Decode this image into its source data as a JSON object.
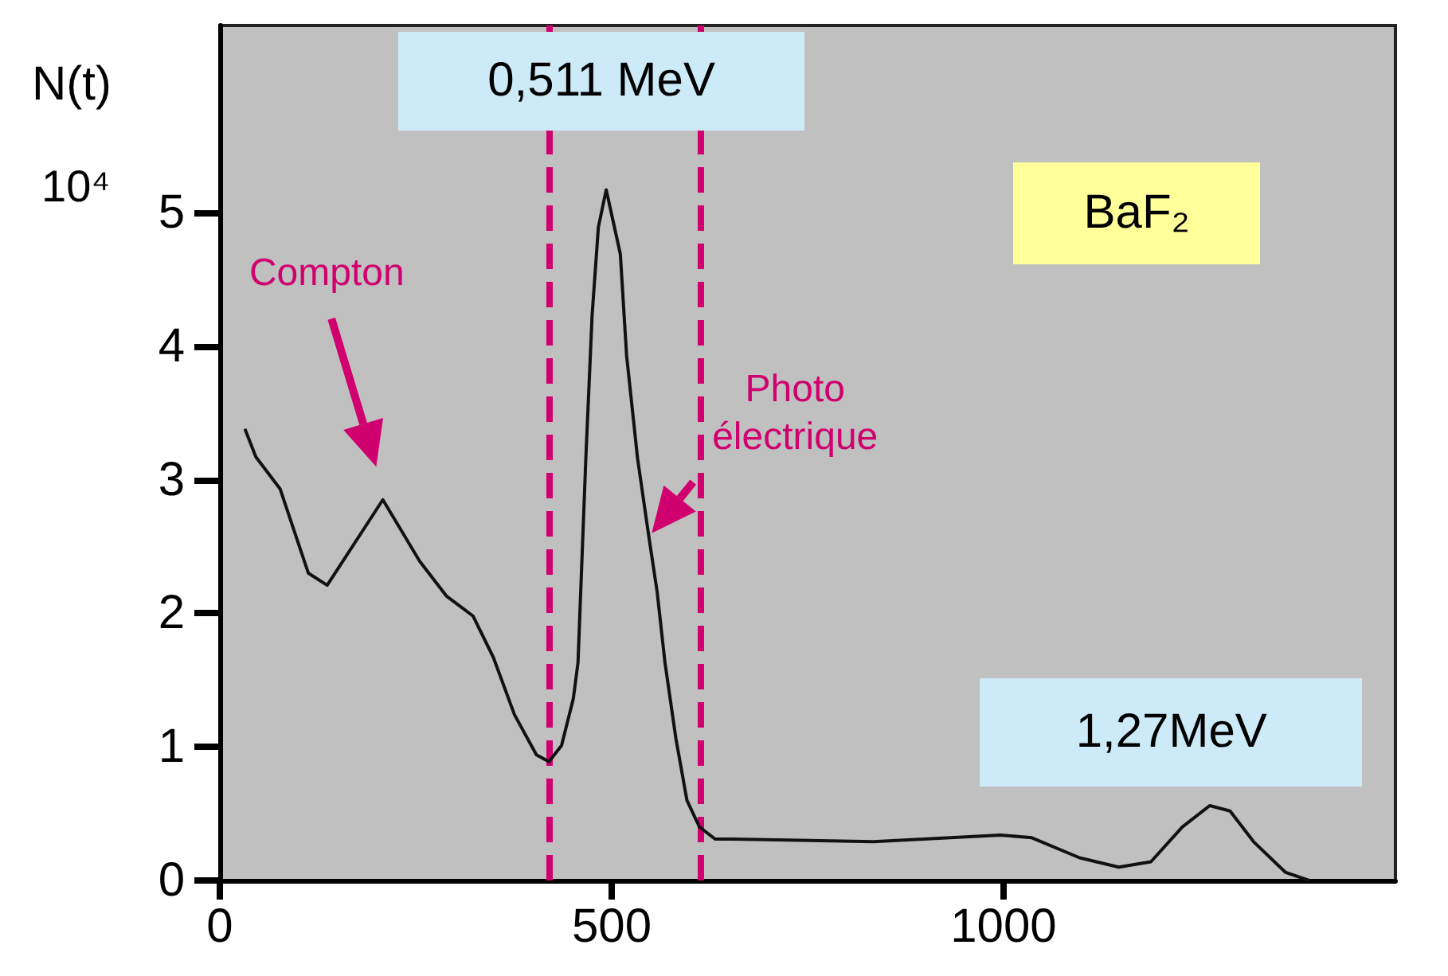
{
  "chart_data": {
    "type": "line",
    "ylabel": "N(t)\n10⁴",
    "x": [
      32,
      46,
      77,
      113,
      137,
      208,
      255,
      289,
      323,
      349,
      376,
      404,
      420,
      436,
      451,
      457,
      467,
      475,
      483,
      493,
      511,
      519,
      533,
      547,
      558,
      568,
      582,
      596,
      612,
      632,
      653,
      834,
      996,
      1036,
      1097,
      1147,
      1188,
      1228,
      1263,
      1289,
      1319,
      1360,
      1390
    ],
    "series": [
      {
        "color": "#111111",
        "values": [
          3.38,
          3.17,
          2.93,
          2.3,
          2.21,
          2.85,
          2.39,
          2.13,
          1.98,
          1.67,
          1.24,
          0.94,
          0.89,
          1.01,
          1.36,
          1.63,
          3.16,
          4.23,
          4.89,
          5.17,
          4.69,
          3.93,
          3.16,
          2.59,
          2.16,
          1.63,
          1.06,
          0.6,
          0.4,
          0.31,
          0.31,
          0.29,
          0.34,
          0.32,
          0.17,
          0.1,
          0.14,
          0.4,
          0.56,
          0.52,
          0.29,
          0.06,
          0
        ]
      }
    ],
    "xlim": [
      0,
      1500
    ],
    "xticks": [
      0,
      500,
      1000
    ],
    "ylim": [
      0,
      6.4
    ],
    "yticks": [
      0,
      1,
      2,
      3,
      4,
      5
    ],
    "ref_lines": [
      {
        "axis": "x",
        "value": 420,
        "color": "#d0006f",
        "line_style": "dashed"
      },
      {
        "axis": "x",
        "value": 614,
        "color": "#d0006f",
        "line_style": "dashed"
      }
    ],
    "annotations": [
      {
        "text": "0,511 MeV",
        "x": 493,
        "y": 5.17
      },
      {
        "text": "1,27MeV",
        "x": 1263,
        "y": 0.56
      },
      "Compton",
      {
        "text": "Photo\nélectrique",
        "x": 547,
        "y": 2.6
      },
      "BaF₂"
    ],
    "grid": false,
    "marker": "none",
    "line_style": "solid"
  }
}
